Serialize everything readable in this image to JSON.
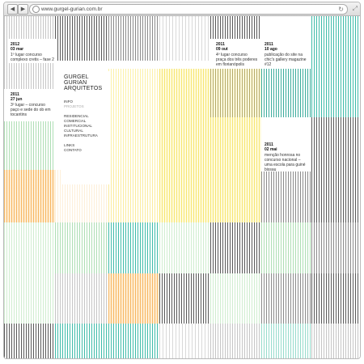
{
  "browser": {
    "url": "www.gurgel-gurian.com.br",
    "back_icon": "◀",
    "forward_icon": "▶",
    "reload_icon": "↻",
    "resize_icon": "⤢"
  },
  "site": {
    "logo_line1": "GURGEL",
    "logo_line2": "GURIAN",
    "logo_line3": "ARQUITETOS",
    "menu": {
      "info": "INFO",
      "projetos": "PROJETOS",
      "residencial": "RESIDENCIAL",
      "comercial": "COMERCIAL",
      "institucional": "INSTITUCIONAL",
      "cultural": "CULTURAL",
      "infraestrutura": "INFRAESTRUTURA",
      "links": "LINKS",
      "contato": "CONTATO"
    }
  },
  "news": [
    {
      "year": "2012",
      "date": "03 mar",
      "text": "1º lugar concurso complexo cretis – fase 2"
    },
    {
      "year": "2011",
      "date": "09 out",
      "text": "4º lugar concurso praça dos três poderes em florianópolis"
    },
    {
      "year": "2011",
      "date": "10 ago",
      "text": "publicação do site na chic's gallery magazine #12"
    },
    {
      "year": "2011",
      "date": "27 jun",
      "text": "3º lugar – concurso paço e sede do ob em tocantins"
    },
    {
      "year": "2011",
      "date": "02 mai",
      "text": "menção honrosa no concurso nacional – uma escola para guiné bissau"
    }
  ],
  "colors": {
    "teal": "#2ab4a0",
    "yellow": "#f5e15a",
    "orange": "#f5aa46",
    "green": "#78c882",
    "gray": "#3c3c3c"
  }
}
